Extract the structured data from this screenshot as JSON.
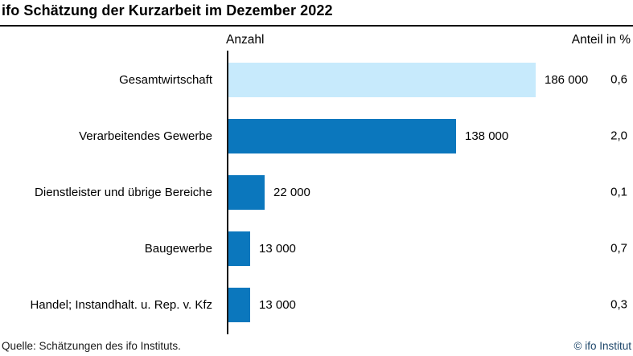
{
  "title": "ifo Schätzung der Kurzarbeit im Dezember 2022",
  "columns": {
    "left": "Anzahl",
    "right": "Anteil in %"
  },
  "footer": {
    "source": "Quelle: Schätzungen des ifo Instituts.",
    "copyright": "© ifo Institut"
  },
  "colors": {
    "bar_highlight": "#c7eafc",
    "bar_default": "#0b77bd",
    "title_rule": "#000000",
    "copyright_text": "#1c4569"
  },
  "chart_data": {
    "type": "bar",
    "orientation": "horizontal",
    "title": "ifo Schätzung der Kurzarbeit im Dezember 2022",
    "categories": [
      "Gesamtwirtschaft",
      "Verarbeitendes Gewerbe",
      "Dienstleister und übrige Bereiche",
      "Baugewerbe",
      "Handel; Instandhalt. u. Rep. v. Kfz"
    ],
    "series": [
      {
        "name": "Anzahl",
        "values": [
          186000,
          138000,
          22000,
          13000,
          13000
        ]
      },
      {
        "name": "Anteil in %",
        "values": [
          0.6,
          2.0,
          0.1,
          0.7,
          0.3
        ]
      }
    ],
    "value_labels": [
      "186 000",
      "138 000",
      "22 000",
      "13 000",
      "13 000"
    ],
    "share_labels": [
      "0,6",
      "2,0",
      "0,1",
      "0,7",
      "0,3"
    ],
    "highlight_index": 0,
    "xlim": [
      0,
      186000
    ],
    "grid": false,
    "legend": false
  }
}
